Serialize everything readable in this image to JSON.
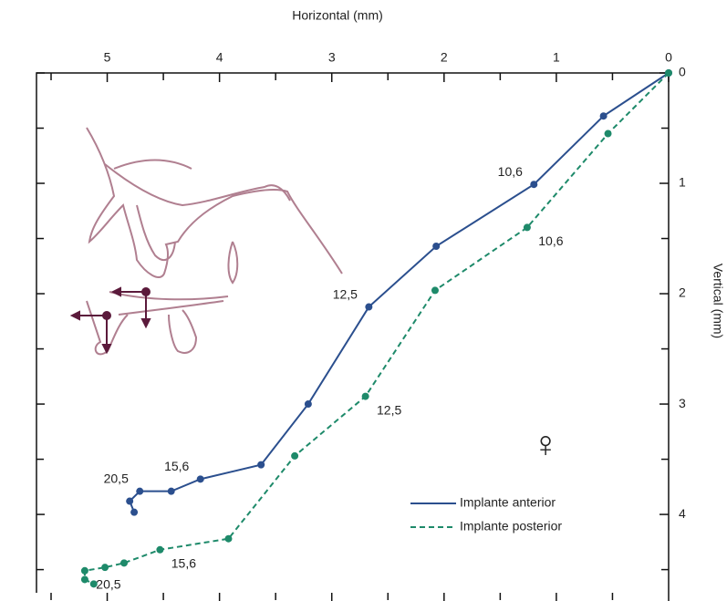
{
  "chart_data": {
    "type": "line",
    "xlabel": "Horizontal (mm)",
    "ylabel": "Vertical (mm)",
    "annotation": "♀",
    "xlim": [
      5.63,
      0
    ],
    "ylim": [
      0,
      4.71
    ],
    "xticks": [
      0,
      1,
      2,
      3,
      4,
      5
    ],
    "yticks": [
      0,
      1,
      2,
      3,
      4
    ],
    "xminorticks": [
      0.5,
      1.5,
      2.5,
      3.5,
      4.5,
      5.5
    ],
    "yminorticks": [
      0.5,
      1.5,
      2.5,
      3.5,
      4.5
    ],
    "legend": "lower right",
    "series": [
      {
        "name": "Implante anterior",
        "color": "#2b4f8e",
        "dashed": false,
        "x": [
          0,
          0.58,
          1.2,
          2.07,
          2.67,
          3.21,
          3.63,
          4.17,
          4.43,
          4.71,
          4.8,
          4.76
        ],
        "values": [
          0,
          0.39,
          1.01,
          1.57,
          2.12,
          3.0,
          3.55,
          3.68,
          3.79,
          3.79,
          3.88,
          3.98
        ],
        "point_labels": [
          null,
          null,
          "10,6",
          null,
          "12,5",
          null,
          null,
          "15,6",
          null,
          "20,5",
          null,
          null
        ]
      },
      {
        "name": "Implante posterior",
        "color": "#1e8a6a",
        "dashed": true,
        "x": [
          0,
          0.54,
          1.26,
          2.08,
          2.7,
          3.33,
          3.92,
          4.53,
          4.85,
          5.02,
          5.2,
          5.2,
          5.12
        ],
        "values": [
          0,
          0.55,
          1.4,
          1.97,
          2.93,
          3.47,
          4.22,
          4.32,
          4.44,
          4.48,
          4.51,
          4.59,
          4.63
        ],
        "point_labels": [
          null,
          null,
          "10,6",
          null,
          "12,5",
          null,
          null,
          "15,6",
          null,
          null,
          "20,5",
          null,
          null
        ]
      }
    ]
  }
}
